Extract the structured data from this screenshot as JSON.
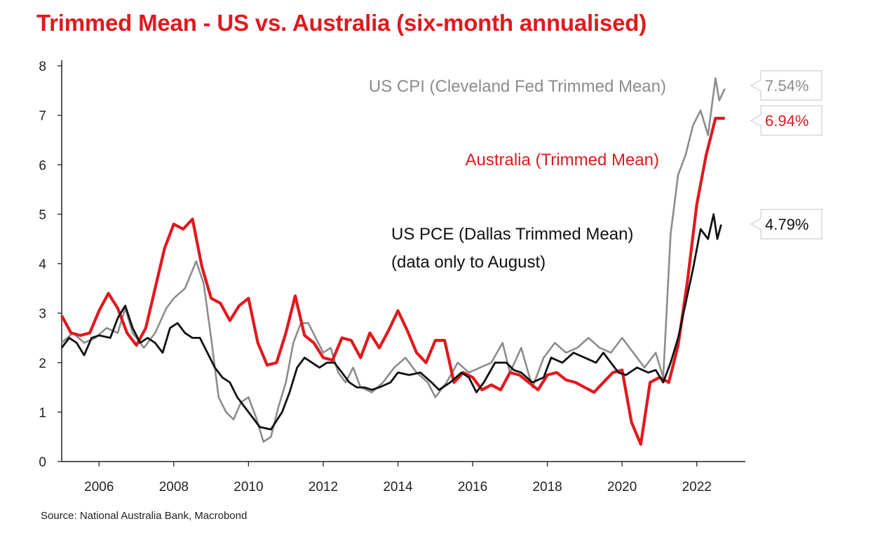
{
  "chart_data": {
    "type": "line",
    "title": "Trimmed Mean - US vs. Australia (six-month annualised)",
    "source": "Source: National Australia Bank, Macrobond",
    "xlabel": "",
    "ylabel": "",
    "xlim": [
      2005.0,
      2023.3
    ],
    "ylim": [
      0,
      8
    ],
    "yticks": [
      0,
      1,
      2,
      3,
      4,
      5,
      6,
      7,
      8
    ],
    "xticks": [
      2006,
      2008,
      2010,
      2012,
      2014,
      2016,
      2018,
      2020,
      2022
    ],
    "grid": false,
    "annotations": [
      {
        "text": "US CPI (Cleveland Fed Trimmed Mean)",
        "color": "#8c8c8c"
      },
      {
        "text": "Australia (Trimmed Mean)",
        "color": "#e1191e"
      },
      {
        "text": "US PCE (Dallas Trimmed Mean)",
        "color": "#111111"
      },
      {
        "text": "(data only to August)",
        "color": "#111111"
      }
    ],
    "series": [
      {
        "name": "US CPI (Cleveland Fed Trimmed Mean)",
        "color": "#8c8c8c",
        "end_label": "7.54%",
        "points": [
          [
            2005.0,
            2.4
          ],
          [
            2005.3,
            2.6
          ],
          [
            2005.6,
            2.4
          ],
          [
            2005.9,
            2.5
          ],
          [
            2006.2,
            2.7
          ],
          [
            2006.5,
            2.6
          ],
          [
            2006.7,
            3.1
          ],
          [
            2006.9,
            2.6
          ],
          [
            2007.2,
            2.3
          ],
          [
            2007.5,
            2.6
          ],
          [
            2007.8,
            3.1
          ],
          [
            2008.0,
            3.3
          ],
          [
            2008.3,
            3.5
          ],
          [
            2008.6,
            4.05
          ],
          [
            2008.8,
            3.6
          ],
          [
            2009.0,
            2.5
          ],
          [
            2009.2,
            1.3
          ],
          [
            2009.4,
            1.0
          ],
          [
            2009.6,
            0.85
          ],
          [
            2009.8,
            1.2
          ],
          [
            2010.0,
            1.3
          ],
          [
            2010.2,
            0.9
          ],
          [
            2010.4,
            0.4
          ],
          [
            2010.6,
            0.5
          ],
          [
            2010.8,
            1.1
          ],
          [
            2011.0,
            1.6
          ],
          [
            2011.2,
            2.4
          ],
          [
            2011.4,
            2.8
          ],
          [
            2011.6,
            2.8
          ],
          [
            2011.8,
            2.5
          ],
          [
            2012.0,
            2.2
          ],
          [
            2012.2,
            2.3
          ],
          [
            2012.4,
            1.8
          ],
          [
            2012.6,
            1.6
          ],
          [
            2012.8,
            1.9
          ],
          [
            2013.0,
            1.5
          ],
          [
            2013.3,
            1.4
          ],
          [
            2013.6,
            1.6
          ],
          [
            2013.9,
            1.9
          ],
          [
            2014.2,
            2.1
          ],
          [
            2014.5,
            1.8
          ],
          [
            2014.8,
            1.6
          ],
          [
            2015.0,
            1.3
          ],
          [
            2015.3,
            1.6
          ],
          [
            2015.6,
            2.0
          ],
          [
            2015.9,
            1.8
          ],
          [
            2016.2,
            1.9
          ],
          [
            2016.5,
            2.0
          ],
          [
            2016.8,
            2.4
          ],
          [
            2017.0,
            1.8
          ],
          [
            2017.3,
            2.3
          ],
          [
            2017.6,
            1.5
          ],
          [
            2017.9,
            2.1
          ],
          [
            2018.2,
            2.4
          ],
          [
            2018.5,
            2.2
          ],
          [
            2018.8,
            2.3
          ],
          [
            2019.1,
            2.5
          ],
          [
            2019.4,
            2.3
          ],
          [
            2019.7,
            2.2
          ],
          [
            2020.0,
            2.5
          ],
          [
            2020.3,
            2.2
          ],
          [
            2020.6,
            1.9
          ],
          [
            2020.9,
            2.2
          ],
          [
            2021.1,
            1.7
          ],
          [
            2021.3,
            4.6
          ],
          [
            2021.5,
            5.8
          ],
          [
            2021.7,
            6.2
          ],
          [
            2021.9,
            6.8
          ],
          [
            2022.1,
            7.1
          ],
          [
            2022.3,
            6.6
          ],
          [
            2022.5,
            7.75
          ],
          [
            2022.6,
            7.3
          ],
          [
            2022.75,
            7.54
          ]
        ]
      },
      {
        "name": "Australia (Trimmed Mean)",
        "color": "#e1191e",
        "end_label": "6.94%",
        "points": [
          [
            2005.0,
            2.95
          ],
          [
            2005.25,
            2.6
          ],
          [
            2005.5,
            2.55
          ],
          [
            2005.75,
            2.6
          ],
          [
            2006.0,
            3.05
          ],
          [
            2006.25,
            3.4
          ],
          [
            2006.5,
            3.1
          ],
          [
            2006.75,
            2.6
          ],
          [
            2007.0,
            2.35
          ],
          [
            2007.25,
            2.7
          ],
          [
            2007.5,
            3.5
          ],
          [
            2007.75,
            4.3
          ],
          [
            2008.0,
            4.8
          ],
          [
            2008.25,
            4.7
          ],
          [
            2008.5,
            4.9
          ],
          [
            2008.75,
            3.95
          ],
          [
            2009.0,
            3.3
          ],
          [
            2009.25,
            3.2
          ],
          [
            2009.5,
            2.85
          ],
          [
            2009.75,
            3.15
          ],
          [
            2010.0,
            3.3
          ],
          [
            2010.25,
            2.4
          ],
          [
            2010.5,
            1.95
          ],
          [
            2010.75,
            2.0
          ],
          [
            2011.0,
            2.6
          ],
          [
            2011.25,
            3.35
          ],
          [
            2011.5,
            2.55
          ],
          [
            2011.75,
            2.4
          ],
          [
            2012.0,
            2.1
          ],
          [
            2012.25,
            2.05
          ],
          [
            2012.5,
            2.5
          ],
          [
            2012.75,
            2.45
          ],
          [
            2013.0,
            2.1
          ],
          [
            2013.25,
            2.6
          ],
          [
            2013.5,
            2.3
          ],
          [
            2013.75,
            2.65
          ],
          [
            2014.0,
            3.05
          ],
          [
            2014.25,
            2.65
          ],
          [
            2014.5,
            2.2
          ],
          [
            2014.75,
            2.0
          ],
          [
            2015.0,
            2.45
          ],
          [
            2015.25,
            2.45
          ],
          [
            2015.5,
            1.6
          ],
          [
            2015.75,
            1.8
          ],
          [
            2016.0,
            1.7
          ],
          [
            2016.25,
            1.45
          ],
          [
            2016.5,
            1.55
          ],
          [
            2016.75,
            1.45
          ],
          [
            2017.0,
            1.8
          ],
          [
            2017.25,
            1.75
          ],
          [
            2017.5,
            1.6
          ],
          [
            2017.75,
            1.45
          ],
          [
            2018.0,
            1.75
          ],
          [
            2018.25,
            1.8
          ],
          [
            2018.5,
            1.65
          ],
          [
            2018.75,
            1.6
          ],
          [
            2019.0,
            1.5
          ],
          [
            2019.25,
            1.4
          ],
          [
            2019.5,
            1.6
          ],
          [
            2019.75,
            1.8
          ],
          [
            2020.0,
            1.85
          ],
          [
            2020.25,
            0.8
          ],
          [
            2020.5,
            0.35
          ],
          [
            2020.75,
            1.6
          ],
          [
            2021.0,
            1.7
          ],
          [
            2021.25,
            1.6
          ],
          [
            2021.5,
            2.35
          ],
          [
            2021.75,
            3.65
          ],
          [
            2022.0,
            5.2
          ],
          [
            2022.25,
            6.2
          ],
          [
            2022.5,
            6.94
          ],
          [
            2022.75,
            6.94
          ]
        ]
      },
      {
        "name": "US PCE (Dallas Trimmed Mean)",
        "color": "#111111",
        "end_label": "4.79%",
        "points": [
          [
            2005.0,
            2.3
          ],
          [
            2005.2,
            2.5
          ],
          [
            2005.4,
            2.4
          ],
          [
            2005.6,
            2.15
          ],
          [
            2005.8,
            2.5
          ],
          [
            2006.0,
            2.55
          ],
          [
            2006.3,
            2.5
          ],
          [
            2006.5,
            2.9
          ],
          [
            2006.7,
            3.15
          ],
          [
            2006.9,
            2.7
          ],
          [
            2007.1,
            2.4
          ],
          [
            2007.3,
            2.5
          ],
          [
            2007.5,
            2.4
          ],
          [
            2007.7,
            2.2
          ],
          [
            2007.9,
            2.7
          ],
          [
            2008.1,
            2.8
          ],
          [
            2008.3,
            2.6
          ],
          [
            2008.5,
            2.5
          ],
          [
            2008.7,
            2.5
          ],
          [
            2008.9,
            2.2
          ],
          [
            2009.1,
            1.9
          ],
          [
            2009.3,
            1.7
          ],
          [
            2009.5,
            1.6
          ],
          [
            2009.7,
            1.3
          ],
          [
            2009.9,
            1.1
          ],
          [
            2010.1,
            0.9
          ],
          [
            2010.3,
            0.7
          ],
          [
            2010.6,
            0.65
          ],
          [
            2010.9,
            1.0
          ],
          [
            2011.1,
            1.4
          ],
          [
            2011.3,
            1.9
          ],
          [
            2011.5,
            2.1
          ],
          [
            2011.7,
            2.0
          ],
          [
            2011.9,
            1.9
          ],
          [
            2012.1,
            2.0
          ],
          [
            2012.3,
            2.0
          ],
          [
            2012.5,
            1.8
          ],
          [
            2012.7,
            1.6
          ],
          [
            2012.9,
            1.5
          ],
          [
            2013.1,
            1.5
          ],
          [
            2013.3,
            1.45
          ],
          [
            2013.5,
            1.5
          ],
          [
            2013.8,
            1.6
          ],
          [
            2014.0,
            1.8
          ],
          [
            2014.3,
            1.75
          ],
          [
            2014.6,
            1.8
          ],
          [
            2014.9,
            1.6
          ],
          [
            2015.1,
            1.45
          ],
          [
            2015.4,
            1.6
          ],
          [
            2015.7,
            1.8
          ],
          [
            2015.9,
            1.7
          ],
          [
            2016.1,
            1.4
          ],
          [
            2016.3,
            1.6
          ],
          [
            2016.6,
            2.0
          ],
          [
            2016.9,
            2.0
          ],
          [
            2017.1,
            1.85
          ],
          [
            2017.3,
            1.8
          ],
          [
            2017.6,
            1.6
          ],
          [
            2017.9,
            1.7
          ],
          [
            2018.1,
            2.1
          ],
          [
            2018.4,
            2.0
          ],
          [
            2018.7,
            2.2
          ],
          [
            2019.0,
            2.1
          ],
          [
            2019.3,
            2.0
          ],
          [
            2019.5,
            2.2
          ],
          [
            2019.7,
            2.0
          ],
          [
            2019.9,
            1.8
          ],
          [
            2020.1,
            1.75
          ],
          [
            2020.4,
            1.9
          ],
          [
            2020.7,
            1.8
          ],
          [
            2020.9,
            1.85
          ],
          [
            2021.1,
            1.6
          ],
          [
            2021.3,
            2.0
          ],
          [
            2021.5,
            2.5
          ],
          [
            2021.7,
            3.2
          ],
          [
            2021.9,
            3.9
          ],
          [
            2022.1,
            4.7
          ],
          [
            2022.3,
            4.5
          ],
          [
            2022.45,
            5.0
          ],
          [
            2022.55,
            4.5
          ],
          [
            2022.65,
            4.79
          ]
        ]
      }
    ]
  }
}
